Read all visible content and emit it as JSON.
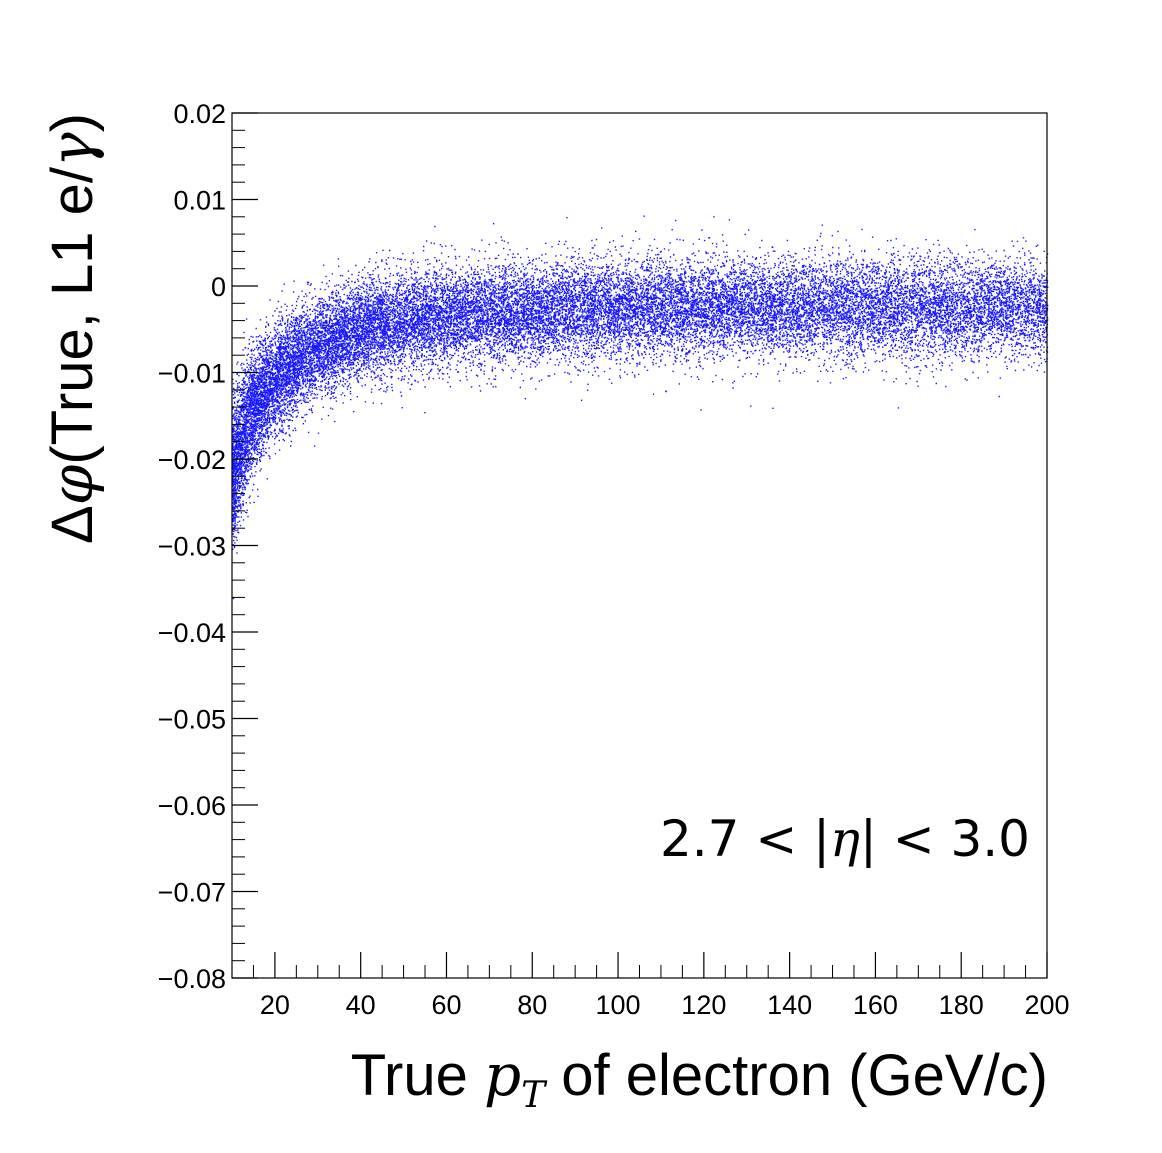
{
  "chart_data": {
    "type": "scatter",
    "title": "",
    "xlabel": {
      "pre": "True ",
      "var": "p",
      "sub": "T",
      "post": " of electron (GeV/c)"
    },
    "ylabel": {
      "pre": "Δ",
      "var": "φ",
      "post": "(True, L1 e/",
      "var2": "γ",
      "post2": ")"
    },
    "annotation": {
      "pre": "2.7 < |",
      "var": "η",
      "post": "| < 3.0"
    },
    "xlim": [
      10,
      200
    ],
    "ylim": [
      -0.08,
      0.02
    ],
    "x_ticks": [
      20,
      40,
      60,
      80,
      100,
      120,
      140,
      160,
      180,
      200
    ],
    "x_tick_labels": [
      "20",
      "40",
      "60",
      "80",
      "100",
      "120",
      "140",
      "160",
      "180",
      "200"
    ],
    "y_ticks": [
      0.02,
      0.01,
      0,
      -0.01,
      -0.02,
      -0.03,
      -0.04,
      -0.05,
      -0.06,
      -0.07,
      -0.08
    ],
    "y_tick_labels": [
      "0.02",
      "0.01",
      "0",
      "−0.01",
      "−0.02",
      "−0.03",
      "−0.04",
      "−0.05",
      "−0.06",
      "−0.07",
      "−0.08"
    ],
    "marker_color": "#0000ff",
    "series": [
      {
        "profile": {
          "x": [
            10,
            12,
            15,
            20,
            25,
            30,
            40,
            50,
            60,
            80,
            100,
            150,
            200
          ],
          "mean": [
            -0.022,
            -0.018,
            -0.014,
            -0.011,
            -0.0085,
            -0.007,
            -0.005,
            -0.004,
            -0.0035,
            -0.003,
            -0.0025,
            -0.0025,
            -0.0025
          ],
          "spread": [
            0.004,
            0.0038,
            0.0035,
            0.0032,
            0.003,
            0.0029,
            0.0028,
            0.0028,
            0.0028,
            0.0028,
            0.0028,
            0.0028,
            0.0028
          ]
        }
      }
    ]
  }
}
